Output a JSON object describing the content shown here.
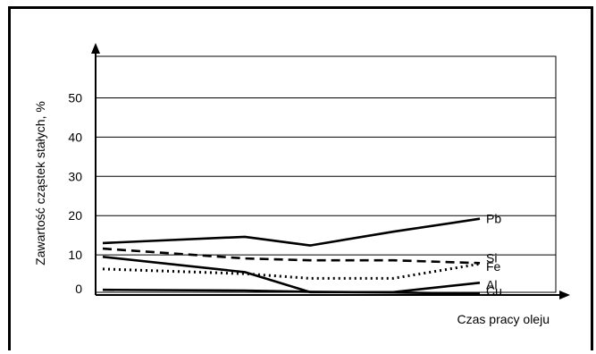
{
  "chart_data": {
    "type": "line",
    "ylabel": "Zawartość cząstek stałych, %",
    "xlabel": "Czas pracy oleju",
    "y_ticks": [
      "0",
      "10",
      "20",
      "30",
      "40",
      "50"
    ],
    "ylim": [
      0,
      56
    ],
    "x": [
      0,
      1,
      2,
      3,
      4
    ],
    "grid": "horizontal",
    "series": [
      {
        "name": "Pb",
        "style": "solid",
        "values": [
          13,
          14.6,
          12.4,
          15.9,
          19.2
        ]
      },
      {
        "name": "Si",
        "style": "dashed",
        "values": [
          11.6,
          9.1,
          8.6,
          8.6,
          7.9
        ]
      },
      {
        "name": "Fe",
        "style": "dotted",
        "values": [
          6.4,
          5.2,
          4.0,
          4.0,
          7.7
        ]
      },
      {
        "name": "Al",
        "style": "solid",
        "values": [
          9.5,
          5.6,
          0.5,
          0.5,
          2.9
        ]
      },
      {
        "name": "Cu",
        "style": "solid",
        "values": [
          1.1,
          0.9,
          0.6,
          0.4,
          0.1
        ]
      }
    ],
    "colors": {
      "line": "#000000",
      "grid": "#000000"
    }
  }
}
